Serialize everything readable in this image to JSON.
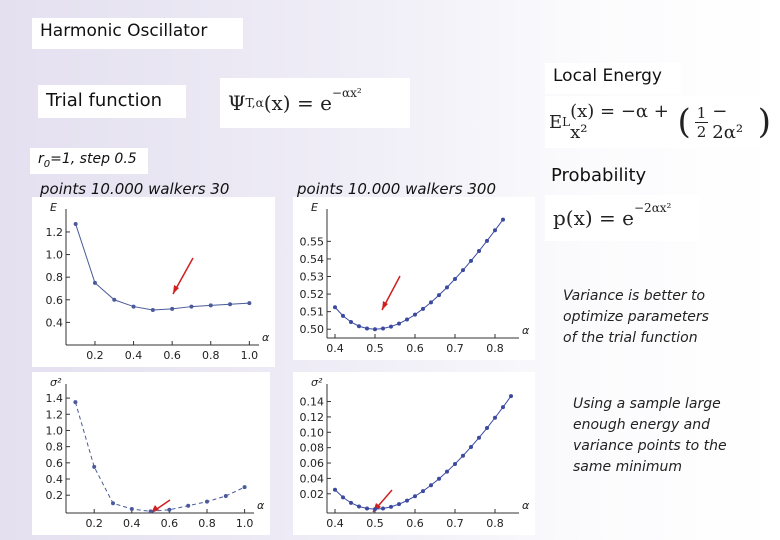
{
  "title": "Harmonic Oscillator",
  "trial_label": "Trial function",
  "trial_formula": {
    "lhs": "Ψ",
    "lhs_sub": "T,α",
    "mid": "(x) = e",
    "sup": "−αx²"
  },
  "params": {
    "r": "r",
    "sub": "0",
    "rest": "=1, step 0.5"
  },
  "run_left": "points 10.000  walkers 30",
  "run_right": "points 10.000  walkers 300",
  "local_energy_label": "Local Energy",
  "local_energy_formula": {
    "lhs": "E",
    "lhs_sub": "L",
    "mid": "(x) = −α + x²",
    "open": "(",
    "num": "1",
    "den": "2",
    "rest": "− 2α²",
    "close": ")"
  },
  "probability_label": "Probability",
  "probability_formula": {
    "mid": "p(x) = e",
    "sup": "−2αx²"
  },
  "note_variance": "Variance is better to optimize parameters of the trial function",
  "note_sample": "Using a sample large enough energy and variance points to the same minimum",
  "chart_data": [
    {
      "type": "scatter",
      "ylabel": "E",
      "xlabel": "α",
      "color": "#4a5a9a",
      "line": "solid",
      "x": [
        0.1,
        0.2,
        0.3,
        0.4,
        0.5,
        0.6,
        0.7,
        0.8,
        0.9,
        1.0
      ],
      "values": [
        1.27,
        0.75,
        0.6,
        0.54,
        0.51,
        0.52,
        0.54,
        0.55,
        0.56,
        0.57
      ],
      "xlim": [
        0.05,
        1.05
      ],
      "xticks": [
        0.2,
        0.4,
        0.6,
        0.8,
        {
          "value": 1,
          "label": "1.0"
        }
      ],
      "ylim": [
        0.2,
        1.35
      ],
      "yticks": [
        0.4,
        0.6,
        0.8,
        {
          "value": 1,
          "label": "1.0"
        },
        1.2
      ]
    },
    {
      "type": "scatter",
      "ylabel": "E",
      "xlabel": "α",
      "color": "#3b4aa0",
      "line": "solid",
      "x": [
        0.4,
        0.42,
        0.44,
        0.46,
        0.48,
        0.5,
        0.52,
        0.54,
        0.56,
        0.58,
        0.6,
        0.62,
        0.64,
        0.66,
        0.68,
        0.7,
        0.72,
        0.74,
        0.76,
        0.78,
        0.8,
        0.82
      ],
      "values": [
        0.5125,
        0.5076,
        0.5041,
        0.5017,
        0.5004,
        0.5,
        0.5004,
        0.5015,
        0.5032,
        0.5055,
        0.5083,
        0.5116,
        0.5153,
        0.5194,
        0.5238,
        0.5286,
        0.5336,
        0.5389,
        0.5445,
        0.5503,
        0.5563,
        0.5624
      ],
      "xlim": [
        0.38,
        0.86
      ],
      "xticks": [
        0.4,
        0.5,
        0.6,
        0.7,
        0.8
      ],
      "ylim": [
        0.495,
        0.565
      ],
      "yticks": [
        {
          "value": 0.5,
          "label": "0.50"
        },
        0.51,
        0.52,
        0.53,
        0.54,
        0.55
      ]
    },
    {
      "type": "scatter",
      "ylabel": "σ²",
      "xlabel": "α",
      "color": "#4a5a9a",
      "line": "dashed",
      "x": [
        0.1,
        0.2,
        0.3,
        0.4,
        0.5,
        0.6,
        0.7,
        0.8,
        0.9,
        1.0
      ],
      "values": [
        1.35,
        0.55,
        0.1,
        0.03,
        0.0,
        0.02,
        0.07,
        0.12,
        0.19,
        0.3
      ],
      "xlim": [
        0.05,
        1.05
      ],
      "xticks": [
        0.2,
        0.4,
        0.6,
        0.8,
        {
          "value": 1,
          "label": "1.0"
        }
      ],
      "ylim": [
        -0.02,
        1.5
      ],
      "yticks": [
        0.2,
        0.4,
        0.6,
        0.8,
        {
          "value": 1,
          "label": "1.0"
        },
        1.2,
        1.4
      ]
    },
    {
      "type": "scatter",
      "ylabel": "σ²",
      "xlabel": "α",
      "color": "#3b4aa0",
      "line": "solid",
      "x": [
        0.4,
        0.42,
        0.44,
        0.46,
        0.48,
        0.5,
        0.52,
        0.54,
        0.56,
        0.58,
        0.6,
        0.62,
        0.64,
        0.66,
        0.68,
        0.7,
        0.72,
        0.74,
        0.76,
        0.78,
        0.8,
        0.82,
        0.84
      ],
      "values": [
        0.0253,
        0.0153,
        0.0082,
        0.0035,
        0.0008,
        0,
        0.0008,
        0.003,
        0.0065,
        0.0111,
        0.0168,
        0.0235,
        0.0311,
        0.0395,
        0.0488,
        0.0588,
        0.0695,
        0.0809,
        0.0929,
        0.1055,
        0.1189,
        0.1327,
        0.1471
      ],
      "xlim": [
        0.38,
        0.86
      ],
      "xticks": [
        0.4,
        0.5,
        0.6,
        0.7,
        0.8
      ],
      "ylim": [
        -0.005,
        0.155
      ],
      "yticks": [
        0.02,
        0.04,
        0.06,
        0.08,
        {
          "value": 0.1,
          "label": "0.10"
        },
        0.12,
        0.14
      ]
    }
  ]
}
